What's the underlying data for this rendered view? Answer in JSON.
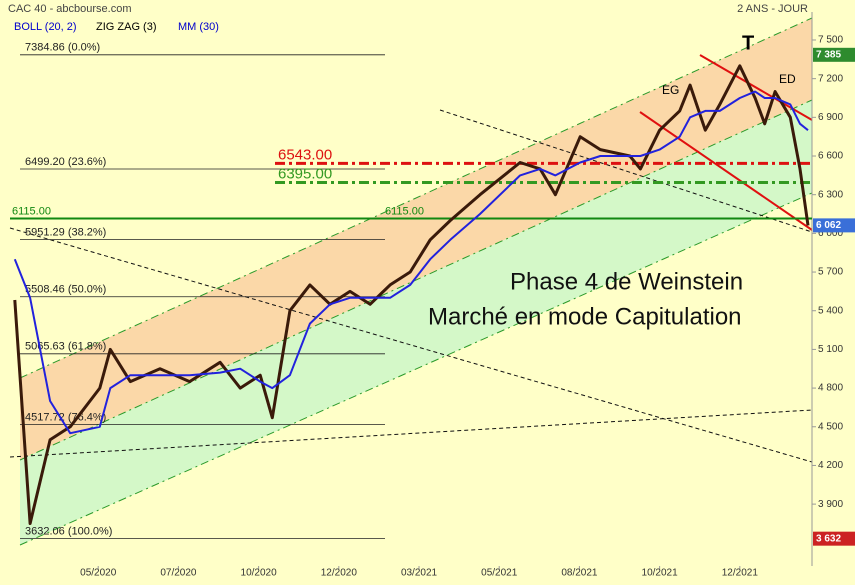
{
  "chart_data": {
    "type": "line",
    "title": "CAC 40 - abcbourse.com",
    "subtitle": "2 ANS - JOUR",
    "indicators": [
      {
        "name": "BOLL (20, 2)",
        "color": "#0000cc"
      },
      {
        "name": "ZIG ZAG (3)",
        "color": "#000000"
      },
      {
        "name": "MM (30)",
        "color": "#0000cc"
      }
    ],
    "x": [
      0.6,
      2.5,
      5,
      7.5,
      11.2,
      12.5,
      15,
      18.7,
      22.4,
      26.2,
      28.7,
      31.2,
      32.7,
      34.9,
      37.4,
      39.9,
      42.4,
      44.9,
      47.4,
      49.9,
      52.4,
      54.9,
      58.6,
      63.6,
      66.1,
      68,
      71.1,
      73.6,
      77.3,
      78.6,
      81,
      83.5,
      84.8,
      86.7,
      88.5,
      91,
      92.9,
      94.1,
      95.4,
      97.3,
      98.5,
      99.5
    ],
    "series": [
      {
        "name": "ZIG ZAG (3)",
        "color": "#3a1a0a",
        "values": [
          5483,
          3750,
          4400,
          4500,
          4800,
          5100,
          4850,
          4950,
          4850,
          5000,
          4800,
          4900,
          4570,
          5400,
          5600,
          5450,
          5550,
          5450,
          5600,
          5700,
          5950,
          6100,
          6300,
          6550,
          6500,
          6300,
          6750,
          6650,
          6600,
          6500,
          6800,
          6950,
          7150,
          6800,
          7000,
          7300,
          7050,
          6850,
          7100,
          6900,
          6500,
          6062
        ]
      },
      {
        "name": "MM (30)",
        "color": "#2222dd",
        "values": [
          5800,
          5500,
          4700,
          4450,
          4500,
          4800,
          4900,
          4900,
          4900,
          4920,
          4950,
          4850,
          4800,
          4900,
          5300,
          5450,
          5500,
          5500,
          5500,
          5600,
          5800,
          5950,
          6150,
          6450,
          6500,
          6450,
          6550,
          6600,
          6600,
          6600,
          6650,
          6750,
          6900,
          6950,
          6950,
          7050,
          7100,
          7050,
          7050,
          7000,
          6850,
          6800
        ]
      }
    ],
    "xlim": [
      0,
      100
    ],
    "xticks": [
      {
        "value": 11,
        "label": "05/2020"
      },
      {
        "value": 21,
        "label": "07/2020"
      },
      {
        "value": 31,
        "label": "10/2020"
      },
      {
        "value": 41,
        "label": "12/2020"
      },
      {
        "value": 51,
        "label": "03/2021"
      },
      {
        "value": 61,
        "label": "05/2021"
      },
      {
        "value": 71,
        "label": "08/2021"
      },
      {
        "value": 81,
        "label": "10/2021"
      },
      {
        "value": 91,
        "label": "12/2021"
      }
    ],
    "ylim": [
      3420,
      7655
    ],
    "yticks": [
      {
        "value": 3900,
        "label": "3 900"
      },
      {
        "value": 4200,
        "label": "4 200"
      },
      {
        "value": 4500,
        "label": "4 500"
      },
      {
        "value": 4800,
        "label": "4 800"
      },
      {
        "value": 5100,
        "label": "5 100"
      },
      {
        "value": 5400,
        "label": "5 400"
      },
      {
        "value": 5700,
        "label": "5 700"
      },
      {
        "value": 6000,
        "label": "6 000"
      },
      {
        "value": 6300,
        "label": "6 300"
      },
      {
        "value": 6600,
        "label": "6 600"
      },
      {
        "value": 6900,
        "label": "6 900"
      },
      {
        "value": 7200,
        "label": "7 200"
      },
      {
        "value": 7500,
        "label": "7 500"
      }
    ],
    "fib_levels": [
      {
        "value": 7384.86,
        "label": "7384.86 (0.0%)"
      },
      {
        "value": 6499.2,
        "label": "6499.20 (23.6%)"
      },
      {
        "value": 5951.29,
        "label": "5951.29 (38.2%)"
      },
      {
        "value": 5508.46,
        "label": "5508.46 (50.0%)"
      },
      {
        "value": 5065.63,
        "label": "5065.63 (61.8%)"
      },
      {
        "value": 4517.72,
        "label": "4517.72 (76.4%)"
      },
      {
        "value": 3632.06,
        "label": "3632.06 (100.0%)"
      }
    ],
    "hlines": [
      {
        "value": 6115,
        "label": "6115.00",
        "color": "#118811"
      },
      {
        "value": 6543,
        "label": "6543.00",
        "color": "#dd1111"
      },
      {
        "value": 6395,
        "label": "6395.00",
        "color": "#339922"
      }
    ],
    "badges": [
      {
        "value": 7385,
        "label": "7 385",
        "color": "#2e8b2e"
      },
      {
        "value": 6062,
        "label": "6 062",
        "color": "#3a6fd8"
      },
      {
        "value": 3632,
        "label": "3 632",
        "color": "#cc2222"
      }
    ],
    "annotations": [
      "Phase 4 de Weinstein",
      "Marché en mode Capitulation",
      "EG",
      "ED",
      "T"
    ]
  }
}
